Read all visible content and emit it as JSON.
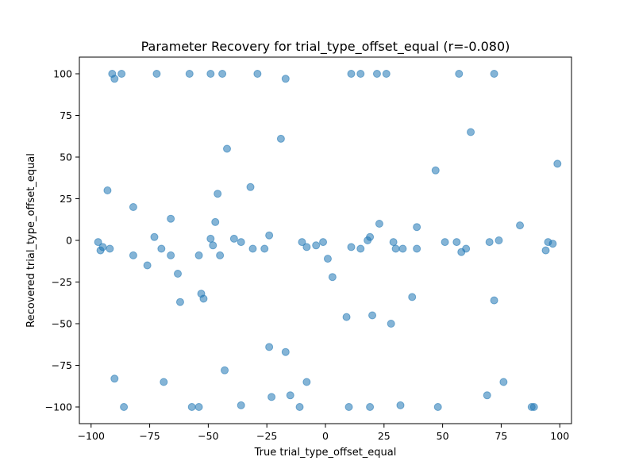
{
  "chart_data": {
    "type": "scatter",
    "title": "Parameter Recovery for trial_type_offset_equal (r=-0.080)",
    "xlabel": "True trial_type_offset_equal",
    "ylabel": "Recovered trial_type_offset_equal",
    "xlim": [
      -105,
      105
    ],
    "ylim": [
      -110,
      110
    ],
    "xticks": [
      -100,
      -75,
      -50,
      -25,
      0,
      25,
      50,
      75,
      100
    ],
    "yticks": [
      -100,
      -75,
      -50,
      -25,
      0,
      25,
      50,
      75,
      100
    ],
    "grid": false,
    "point_color": "#1f77b4",
    "points": [
      [
        -91,
        100
      ],
      [
        -90,
        97
      ],
      [
        -87,
        100
      ],
      [
        -72,
        100
      ],
      [
        -58,
        100
      ],
      [
        -49,
        100
      ],
      [
        -44,
        100
      ],
      [
        -29,
        100
      ],
      [
        -17,
        97
      ],
      [
        11,
        100
      ],
      [
        15,
        100
      ],
      [
        22,
        100
      ],
      [
        26,
        100
      ],
      [
        57,
        100
      ],
      [
        72,
        100
      ],
      [
        62,
        65
      ],
      [
        -19,
        61
      ],
      [
        -42,
        55
      ],
      [
        47,
        42
      ],
      [
        99,
        46
      ],
      [
        -32,
        32
      ],
      [
        -93,
        30
      ],
      [
        -46,
        28
      ],
      [
        -82,
        20
      ],
      [
        -66,
        13
      ],
      [
        -47,
        11
      ],
      [
        23,
        10
      ],
      [
        83,
        9
      ],
      [
        39,
        8
      ],
      [
        -73,
        2
      ],
      [
        -49,
        1
      ],
      [
        -24,
        3
      ],
      [
        -39,
        1
      ],
      [
        -36,
        -1
      ],
      [
        -97,
        -1
      ],
      [
        -96,
        -6
      ],
      [
        -95,
        -4
      ],
      [
        -92,
        -5
      ],
      [
        -70,
        -5
      ],
      [
        -66,
        -9
      ],
      [
        -82,
        -9
      ],
      [
        -54,
        -9
      ],
      [
        -48,
        -3
      ],
      [
        -45,
        -9
      ],
      [
        -31,
        -5
      ],
      [
        -26,
        -5
      ],
      [
        -10,
        -1
      ],
      [
        -8,
        -4
      ],
      [
        -4,
        -3
      ],
      [
        -1,
        -1
      ],
      [
        1,
        -11
      ],
      [
        3,
        -22
      ],
      [
        11,
        -4
      ],
      [
        15,
        -5
      ],
      [
        18,
        0
      ],
      [
        19,
        2
      ],
      [
        29,
        -1
      ],
      [
        30,
        -5
      ],
      [
        33,
        -5
      ],
      [
        39,
        -5
      ],
      [
        51,
        -1
      ],
      [
        56,
        -1
      ],
      [
        58,
        -7
      ],
      [
        60,
        -5
      ],
      [
        70,
        -1
      ],
      [
        74,
        0
      ],
      [
        94,
        -6
      ],
      [
        95,
        -1
      ],
      [
        97,
        -2
      ],
      [
        -76,
        -15
      ],
      [
        -63,
        -20
      ],
      [
        -53,
        -32
      ],
      [
        -52,
        -35
      ],
      [
        -62,
        -37
      ],
      [
        37,
        -34
      ],
      [
        72,
        -36
      ],
      [
        9,
        -46
      ],
      [
        20,
        -45
      ],
      [
        28,
        -50
      ],
      [
        -24,
        -64
      ],
      [
        -17,
        -67
      ],
      [
        -43,
        -78
      ],
      [
        -90,
        -83
      ],
      [
        -69,
        -85
      ],
      [
        -8,
        -85
      ],
      [
        76,
        -85
      ],
      [
        -86,
        -100
      ],
      [
        -57,
        -100
      ],
      [
        -54,
        -100
      ],
      [
        -36,
        -99
      ],
      [
        -23,
        -94
      ],
      [
        -15,
        -93
      ],
      [
        -11,
        -100
      ],
      [
        10,
        -100
      ],
      [
        19,
        -100
      ],
      [
        32,
        -99
      ],
      [
        48,
        -100
      ],
      [
        69,
        -93
      ],
      [
        88,
        -100
      ],
      [
        89,
        -100
      ]
    ]
  }
}
